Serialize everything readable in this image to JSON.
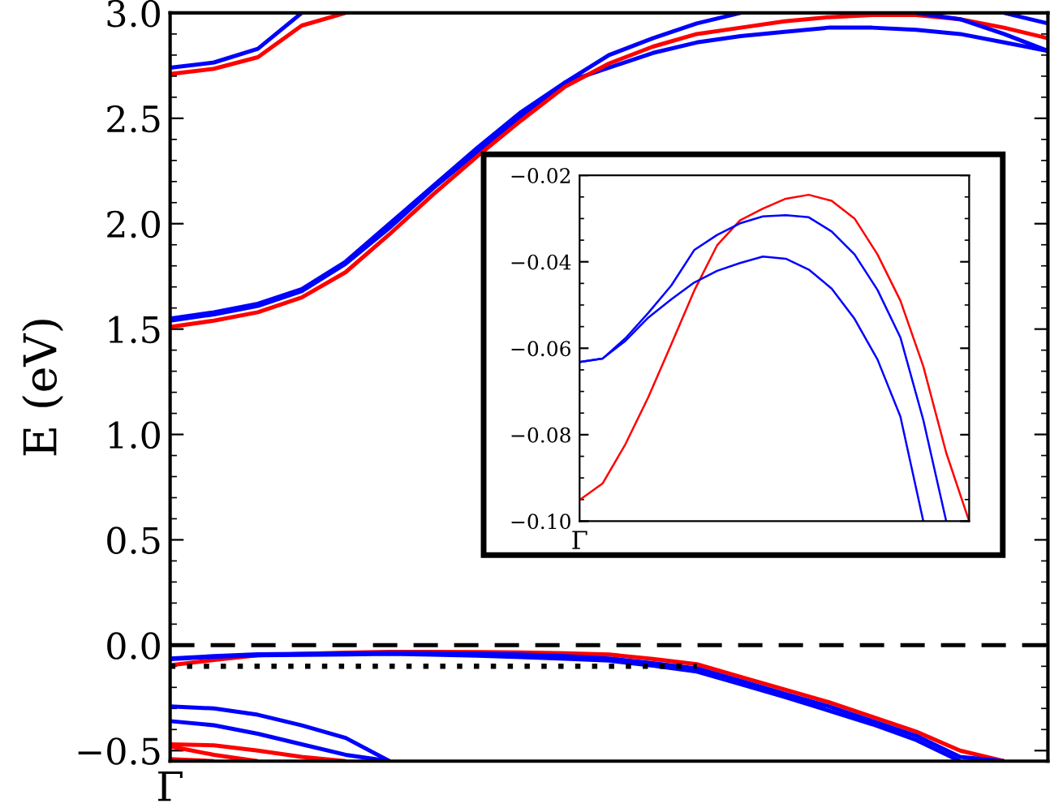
{
  "chart_data": [
    {
      "type": "line",
      "ylabel": "E (eV)",
      "ylim": [
        -0.55,
        3.0
      ],
      "categories": [
        "Γ",
        null,
        null,
        null,
        null,
        null,
        null,
        null,
        null,
        null,
        null,
        null,
        null,
        null,
        null,
        null,
        null,
        null,
        null,
        null,
        null
      ],
      "yticks": [
        {
          "value": -0.5,
          "label": "−0.5"
        },
        {
          "value": 0,
          "label": "0.0"
        },
        {
          "value": 0.5,
          "label": "0.5"
        },
        {
          "value": 1,
          "label": "1.0"
        },
        {
          "value": 1.5,
          "label": "1.5"
        },
        {
          "value": 2,
          "label": "2.0"
        },
        {
          "value": 2.5,
          "label": "2.5"
        },
        {
          "value": 3,
          "label": "3.0"
        }
      ],
      "grid": false,
      "ref_lines": [
        {
          "axis": "y",
          "value": 0,
          "color": "#000000",
          "line_style": "dashed"
        }
      ],
      "series": [
        {
          "color": "#0000ff",
          "values": [
            2.74,
            2.765,
            2.83,
            3.0,
            null,
            null,
            null,
            null,
            null,
            null,
            null,
            null,
            null,
            null,
            null,
            null,
            null,
            null,
            null,
            null,
            null
          ]
        },
        {
          "color": "#ff0000",
          "values": [
            2.71,
            2.735,
            2.79,
            2.94,
            3.0,
            null,
            null,
            null,
            null,
            null,
            null,
            null,
            null,
            null,
            null,
            null,
            null,
            null,
            null,
            null,
            null
          ]
        },
        {
          "color": "#0000ff",
          "values": [
            1.55,
            1.58,
            1.62,
            1.69,
            1.82,
            2.0,
            2.18,
            2.36,
            2.53,
            2.67,
            2.8,
            2.88,
            2.95,
            3.0,
            null,
            null,
            null,
            null,
            null,
            null,
            null
          ]
        },
        {
          "color": "#0000ff",
          "values": [
            1.54,
            1.57,
            1.61,
            1.68,
            1.81,
            1.98,
            2.17,
            2.34,
            2.51,
            2.67,
            2.74,
            2.81,
            2.86,
            2.89,
            2.91,
            2.93,
            2.93,
            2.92,
            2.9,
            2.86,
            2.82
          ]
        },
        {
          "color": "#ff0000",
          "values": [
            1.51,
            1.54,
            1.58,
            1.65,
            1.77,
            1.95,
            2.14,
            2.32,
            2.49,
            2.65,
            2.76,
            2.84,
            2.9,
            2.93,
            2.96,
            2.98,
            2.99,
            2.99,
            2.97,
            2.93,
            2.88
          ]
        },
        {
          "color": "#0000ff",
          "values": [
            null,
            null,
            null,
            null,
            null,
            null,
            null,
            null,
            null,
            null,
            null,
            null,
            null,
            null,
            null,
            null,
            null,
            3.0,
            2.97,
            2.9,
            2.82
          ]
        },
        {
          "color": "#0000ff",
          "values": [
            null,
            null,
            null,
            null,
            null,
            null,
            null,
            null,
            null,
            null,
            null,
            null,
            null,
            null,
            null,
            null,
            null,
            null,
            null,
            3.0,
            2.95
          ]
        },
        {
          "color": "#ff0000",
          "values": [
            -0.095,
            -0.07,
            -0.048,
            -0.041,
            -0.035,
            -0.031,
            -0.031,
            -0.032,
            -0.034,
            -0.038,
            -0.044,
            -0.065,
            -0.09,
            -0.15,
            -0.21,
            -0.27,
            -0.34,
            -0.41,
            -0.5,
            -0.55,
            null
          ]
        },
        {
          "color": "#0000ff",
          "values": [
            -0.063,
            -0.052,
            -0.043,
            -0.041,
            -0.039,
            -0.036,
            -0.037,
            -0.04,
            -0.044,
            -0.052,
            -0.063,
            -0.085,
            -0.11,
            -0.17,
            -0.23,
            -0.29,
            -0.36,
            -0.43,
            -0.53,
            -0.55,
            null
          ]
        },
        {
          "color": "#0000ff",
          "values": [
            -0.066,
            -0.055,
            -0.048,
            -0.046,
            -0.044,
            -0.041,
            -0.045,
            -0.05,
            -0.056,
            -0.064,
            -0.073,
            -0.097,
            -0.125,
            -0.185,
            -0.245,
            -0.31,
            -0.375,
            -0.45,
            -0.55,
            null,
            null
          ]
        },
        {
          "color": "#0000ff",
          "values": [
            -0.29,
            -0.3,
            -0.33,
            -0.38,
            -0.44,
            -0.55,
            null,
            null,
            null,
            null,
            null,
            null,
            null,
            null,
            null,
            null,
            null,
            null,
            null,
            null,
            null
          ]
        },
        {
          "color": "#0000ff",
          "values": [
            -0.36,
            -0.38,
            -0.42,
            -0.47,
            -0.52,
            -0.55,
            null,
            null,
            null,
            null,
            null,
            null,
            null,
            null,
            null,
            null,
            null,
            null,
            null,
            null,
            null
          ]
        },
        {
          "color": "#ff0000",
          "values": [
            -0.47,
            -0.475,
            -0.5,
            -0.53,
            -0.55,
            null,
            null,
            null,
            null,
            null,
            null,
            null,
            null,
            null,
            null,
            null,
            null,
            null,
            null,
            null,
            null
          ]
        },
        {
          "color": "#ff0000",
          "values": [
            -0.48,
            -0.52,
            -0.55,
            null,
            null,
            null,
            null,
            null,
            null,
            null,
            null,
            null,
            null,
            null,
            null,
            null,
            null,
            null,
            null,
            null,
            null
          ]
        },
        {
          "color": "#ff0000",
          "values": [
            -0.54,
            -0.55,
            null,
            null,
            null,
            null,
            null,
            null,
            null,
            null,
            null,
            null,
            null,
            null,
            null,
            null,
            null,
            null,
            null,
            null,
            null
          ]
        },
        {
          "color": "#000000",
          "line_style": "dotted",
          "values": [
            -0.1,
            -0.1,
            -0.1,
            -0.1,
            -0.1,
            -0.1,
            -0.1,
            -0.1,
            -0.1,
            -0.1,
            -0.1,
            -0.1,
            -0.1,
            null,
            null,
            null,
            null,
            null,
            null,
            null,
            null
          ]
        }
      ]
    },
    {
      "type": "line",
      "ylim": [
        -0.1,
        -0.02
      ],
      "categories": [
        "Γ",
        null,
        null,
        null,
        null,
        null,
        null,
        null,
        null,
        null,
        null,
        null,
        null,
        null,
        null,
        null,
        null,
        null
      ],
      "yticks": [
        {
          "value": -0.1,
          "label": "−0.10"
        },
        {
          "value": -0.08,
          "label": "−0.08"
        },
        {
          "value": -0.06,
          "label": "−0.06"
        },
        {
          "value": -0.04,
          "label": "−0.04"
        },
        {
          "value": -0.02,
          "label": "−0.02"
        }
      ],
      "grid": false,
      "series": [
        {
          "color": "#ff0000",
          "values": [
            -0.0951,
            -0.0913,
            -0.0822,
            -0.0713,
            -0.0591,
            -0.0467,
            -0.0362,
            -0.0304,
            -0.0277,
            -0.0254,
            -0.0245,
            -0.0259,
            -0.03,
            -0.0383,
            -0.049,
            -0.0642,
            -0.0842,
            -0.1
          ]
        },
        {
          "color": "#0000ff",
          "values": [
            -0.0632,
            -0.0624,
            -0.0577,
            -0.0518,
            -0.0455,
            -0.0373,
            -0.0338,
            -0.0311,
            -0.0295,
            -0.0292,
            -0.0297,
            -0.033,
            -0.0383,
            -0.0465,
            -0.0575,
            -0.0766,
            -0.1,
            null
          ]
        },
        {
          "color": "#0000ff",
          "values": [
            -0.0632,
            -0.0624,
            -0.0583,
            -0.0529,
            -0.0487,
            -0.0448,
            -0.0421,
            -0.0403,
            -0.0388,
            -0.0393,
            -0.0418,
            -0.0462,
            -0.0532,
            -0.0626,
            -0.0758,
            -0.1,
            null,
            null
          ]
        }
      ]
    }
  ]
}
